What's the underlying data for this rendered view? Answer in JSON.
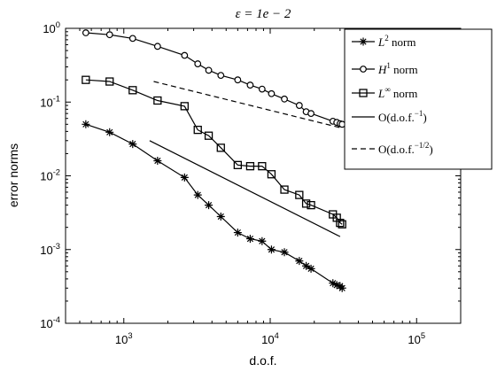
{
  "chart_data": {
    "type": "line",
    "title": "ε = 1e − 2",
    "xlabel": "d.o.f.",
    "ylabel": "error norms",
    "xscale": "log",
    "yscale": "log",
    "xlim": [
      400,
      200000
    ],
    "ylim": [
      0.0001,
      1
    ],
    "x_ticks": [
      {
        "base": "10",
        "exp": "3"
      },
      {
        "base": "10",
        "exp": "4"
      },
      {
        "base": "10",
        "exp": "5"
      }
    ],
    "y_ticks": [
      {
        "base": "10",
        "exp": "-4"
      },
      {
        "base": "10",
        "exp": "-3"
      },
      {
        "base": "10",
        "exp": "-2"
      },
      {
        "base": "10",
        "exp": "-1"
      },
      {
        "base": "10",
        "exp": "0"
      }
    ],
    "grid": false,
    "legend_position": "top-right",
    "series": [
      {
        "name": "L^2 norm",
        "legend": {
          "main": "L",
          "sup": "2",
          "rest": " norm"
        },
        "marker": "star",
        "line": "solid",
        "x": [
          550,
          800,
          1150,
          1700,
          2600,
          3200,
          3800,
          4600,
          6000,
          7300,
          8800,
          10200,
          12500,
          15800,
          17600,
          19000,
          26800,
          28500,
          30000,
          31000
        ],
        "y": [
          0.05,
          0.039,
          0.027,
          0.016,
          0.0095,
          0.0055,
          0.004,
          0.0028,
          0.0017,
          0.0014,
          0.0013,
          0.001,
          0.00092,
          0.0007,
          0.0006,
          0.00055,
          0.00035,
          0.00033,
          0.00032,
          0.0003
        ]
      },
      {
        "name": "H^1 norm",
        "legend": {
          "main": "H",
          "sup": "1",
          "rest": " norm"
        },
        "marker": "circle",
        "line": "solid",
        "x": [
          550,
          800,
          1150,
          1700,
          2600,
          3200,
          3800,
          4600,
          6000,
          7300,
          8800,
          10200,
          12500,
          15800,
          17600,
          19000,
          26800,
          28500,
          30000,
          31000
        ],
        "y": [
          0.87,
          0.82,
          0.73,
          0.57,
          0.43,
          0.33,
          0.27,
          0.23,
          0.2,
          0.17,
          0.15,
          0.13,
          0.11,
          0.09,
          0.074,
          0.07,
          0.055,
          0.053,
          0.051,
          0.05
        ]
      },
      {
        "name": "L^∞ norm",
        "legend": {
          "main": "L",
          "sup": "∞",
          "rest": " norm"
        },
        "marker": "square",
        "line": "solid",
        "x": [
          550,
          800,
          1150,
          1700,
          2600,
          3200,
          3800,
          4600,
          6000,
          7300,
          8800,
          10200,
          12500,
          15800,
          17600,
          19000,
          26800,
          28500,
          30000,
          31000
        ],
        "y": [
          0.2,
          0.19,
          0.145,
          0.105,
          0.088,
          0.042,
          0.035,
          0.024,
          0.014,
          0.0135,
          0.0135,
          0.0105,
          0.0065,
          0.0055,
          0.0042,
          0.004,
          0.003,
          0.0027,
          0.0023,
          0.0022
        ]
      },
      {
        "name": "O(d.o.f.^-1)",
        "legend": {
          "main": "O(d.o.f.",
          "sup": "−1",
          "rest": ")"
        },
        "marker": "none",
        "line": "solid",
        "x": [
          1500,
          30000
        ],
        "y": [
          0.03,
          0.0015
        ]
      },
      {
        "name": "O(d.o.f.^-1/2)",
        "legend": {
          "main": "O(d.o.f.",
          "sup": "−1/2",
          "rest": ")"
        },
        "marker": "none",
        "line": "dashed",
        "x": [
          1600,
          30000
        ],
        "y": [
          0.19,
          0.045
        ]
      }
    ]
  }
}
